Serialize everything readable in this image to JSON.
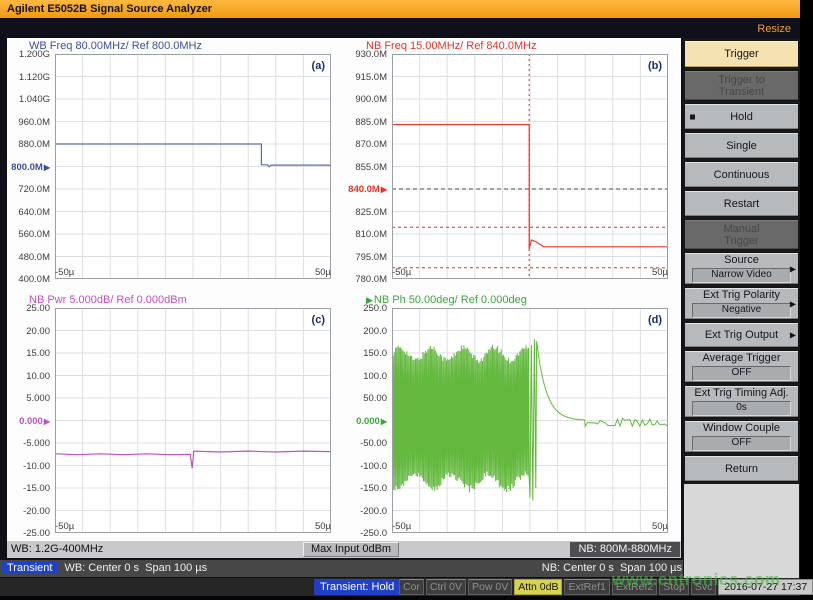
{
  "title_bar": {
    "title": "Agilent E5052B Signal Source Analyzer"
  },
  "top_strip": {
    "resize_label": "Resize"
  },
  "watermark": "www.cntronics.com",
  "chart_data": {
    "type": "line",
    "x_axis": {
      "left_tick": "-50µ",
      "right_tick": "50µ",
      "center": "0 s",
      "span": "100 µs"
    },
    "plots": [
      {
        "id": "a",
        "corner": "(a)",
        "header": "WB Freq 80.00MHz/ Ref 800.0MHz",
        "header_color": "#3b4fa0",
        "trace_color": "#5a6cb0",
        "header_arrow": false,
        "y_ticks": [
          "1.200G",
          "1.120G",
          "1.040G",
          "960.0M",
          "880.0M",
          "800.0M",
          "720.0M",
          "640.0M",
          "560.0M",
          "480.0M",
          "400.0M"
        ],
        "ref_tick": 5,
        "ymin": 400,
        "ymax": 1200,
        "y_unit": "MHz",
        "x_left": "-50µ",
        "x_right": "50µ",
        "overlays": [],
        "segments": [
          {
            "type": "points",
            "pts": [
              [
                0,
                880
              ],
              [
                0.748,
                880
              ],
              [
                0.748,
                806
              ],
              [
                0.77,
                806
              ],
              [
                0.776,
                799
              ],
              [
                0.783,
                805
              ],
              [
                1,
                805
              ]
            ]
          }
        ]
      },
      {
        "id": "b",
        "corner": "(b)",
        "header": "NB Freq 15.00MHz/ Ref 840.0MHz",
        "header_color": "#e03428",
        "trace_color": "#e8392e",
        "header_arrow": false,
        "y_ticks": [
          "930.0M",
          "915.0M",
          "900.0M",
          "885.0M",
          "870.0M",
          "855.0M",
          "840.0M",
          "825.0M",
          "810.0M",
          "795.0M",
          "780.0M"
        ],
        "ref_tick": 6,
        "ymin": 780,
        "ymax": 930,
        "y_unit": "MHz",
        "x_left": "-50µ",
        "x_right": "50µ",
        "overlays": [
          {
            "type": "hline",
            "y": 840,
            "color": "#4a4a4a",
            "dash": "4 3"
          },
          {
            "type": "hline",
            "y": 814.5,
            "color": "#e03428",
            "dash": "3 3"
          },
          {
            "type": "hline",
            "y": 787.5,
            "color": "#e03428",
            "dash": "3 3"
          },
          {
            "type": "hline",
            "y": 883,
            "x1": 0.497,
            "color": "#7a241e",
            "dash": "5 9"
          },
          {
            "type": "vline",
            "x": 0.497,
            "color": "#e03428",
            "dash": "2 3"
          }
        ],
        "segments": [
          {
            "type": "points",
            "pts": [
              [
                0,
                883
              ],
              [
                0.497,
                883
              ],
              [
                0.497,
                800
              ],
              [
                0.505,
                806
              ],
              [
                0.52,
                805
              ],
              [
                0.55,
                801.5
              ],
              [
                1,
                801.5
              ]
            ]
          }
        ]
      },
      {
        "id": "c",
        "corner": "(c)",
        "header": "NB Pwr 5.000dB/ Ref 0.000dBm",
        "header_color": "#c050c4",
        "trace_color": "#bd53bd",
        "header_arrow": false,
        "y_ticks": [
          "25.00",
          "20.00",
          "15.00",
          "10.00",
          "5.000",
          "0.000",
          "-5.000",
          "-10.00",
          "-15.00",
          "-20.00",
          "-25.00"
        ],
        "ref_tick": 5,
        "ymin": -25,
        "ymax": 25,
        "y_unit": "dBm",
        "x_left": "-50µ",
        "x_right": "50µ",
        "overlays": [],
        "segments": [
          {
            "type": "points",
            "pts": [
              [
                0,
                -7.4
              ],
              [
                0.08,
                -7.6
              ],
              [
                0.16,
                -7.4
              ],
              [
                0.25,
                -7.6
              ],
              [
                0.33,
                -7.4
              ],
              [
                0.42,
                -7.6
              ],
              [
                0.49,
                -7.5
              ],
              [
                0.497,
                -10.6
              ],
              [
                0.503,
                -6.8
              ],
              [
                0.6,
                -7.0
              ],
              [
                0.7,
                -6.8
              ],
              [
                0.8,
                -7.0
              ],
              [
                0.9,
                -6.8
              ],
              [
                1,
                -6.9
              ]
            ]
          }
        ]
      },
      {
        "id": "d",
        "corner": "(d)",
        "header": "NB Ph 50.00deg/ Ref 0.000deg",
        "header_color": "#3fa53f",
        "trace_color": "#63b83e",
        "header_arrow": true,
        "y_ticks": [
          "250.0",
          "200.0",
          "150.0",
          "100.0",
          "50.00",
          "0.000",
          "-50.00",
          "-100.0",
          "-150.0",
          "-200.0",
          "-250.0"
        ],
        "ref_tick": 5,
        "ymin": -250,
        "ymax": 250,
        "y_unit": "deg",
        "x_left": "-50µ",
        "x_right": "50µ",
        "overlays": [],
        "segments": [
          {
            "type": "osc",
            "x0": 0.004,
            "x1": 0.497,
            "step": 0.0045,
            "top_base": 148,
            "top_var": 14,
            "bot_base": -136,
            "bot_var": 16
          },
          {
            "type": "points",
            "pts": [
              [
                0.5,
                -172
              ],
              [
                0.505,
                168
              ],
              [
                0.51,
                -178
              ],
              [
                0.516,
                181
              ],
              [
                0.521,
                -150
              ]
            ]
          },
          {
            "type": "decay",
            "x0": 0.524,
            "x1": 0.7,
            "step": 0.006,
            "from": 176,
            "tau": 0.035
          },
          {
            "type": "noise",
            "x0": 0.7,
            "x1": 1.0,
            "step": 0.009,
            "mean": -4,
            "amp": 9
          }
        ]
      }
    ]
  },
  "sidebar": {
    "items": [
      {
        "label": "Trigger",
        "type": "title",
        "h": 28
      },
      {
        "lines": [
          "Trigger to",
          "Transient"
        ],
        "label": "Trigger to Transient",
        "type": "disabled",
        "h": 31
      },
      {
        "label": "Hold",
        "type": "button",
        "bullet": true,
        "h": 27
      },
      {
        "label": "Single",
        "type": "button",
        "h": 27
      },
      {
        "label": "Continuous",
        "type": "button",
        "h": 27
      },
      {
        "label": "Restart",
        "type": "button",
        "h": 27
      },
      {
        "lines": [
          "Manual",
          "Trigger"
        ],
        "label": "Manual Trigger",
        "type": "disabled",
        "h": 31
      },
      {
        "label": "Source",
        "value": "Narrow Video",
        "type": "value",
        "arrow": true,
        "h": 33
      },
      {
        "label": "Ext Trig Polarity",
        "value": "Negative",
        "type": "value",
        "arrow": true,
        "h": 33
      },
      {
        "label": "Ext Trig Output",
        "type": "button",
        "arrow": true,
        "h": 26
      },
      {
        "label": "Average Trigger",
        "value": "OFF",
        "type": "value",
        "h": 33
      },
      {
        "label": "Ext Trig Timing Adj.",
        "value": "0s",
        "type": "value",
        "h": 33
      },
      {
        "label": "Window Couple",
        "value": "OFF",
        "type": "value",
        "h": 33
      },
      {
        "label": "Return",
        "type": "button",
        "h": 27
      }
    ]
  },
  "freq_bar": {
    "wb": "WB: 1.2G-400MHz",
    "max_input": "Max Input 0dBm",
    "nb": "NB: 800M-880MHz"
  },
  "transient_bar": {
    "badge": "Transient",
    "wb": "WB: Center 0 s  Span 100 µs",
    "nb": "NB: Center 0 s  Span 100 µs"
  },
  "status_bar": {
    "badge": "Transient: Hold",
    "cells": [
      {
        "label": "Cor"
      },
      {
        "label": "Ctrl 0V"
      },
      {
        "label": "Pow 0V"
      },
      {
        "label": "Attn 0dB",
        "highlight": true
      },
      {
        "label": "ExtRef1"
      },
      {
        "label": "ExtRef2"
      },
      {
        "label": "Stop"
      },
      {
        "label": "Svc"
      }
    ],
    "datetime": "2016-07-27 17:37"
  }
}
